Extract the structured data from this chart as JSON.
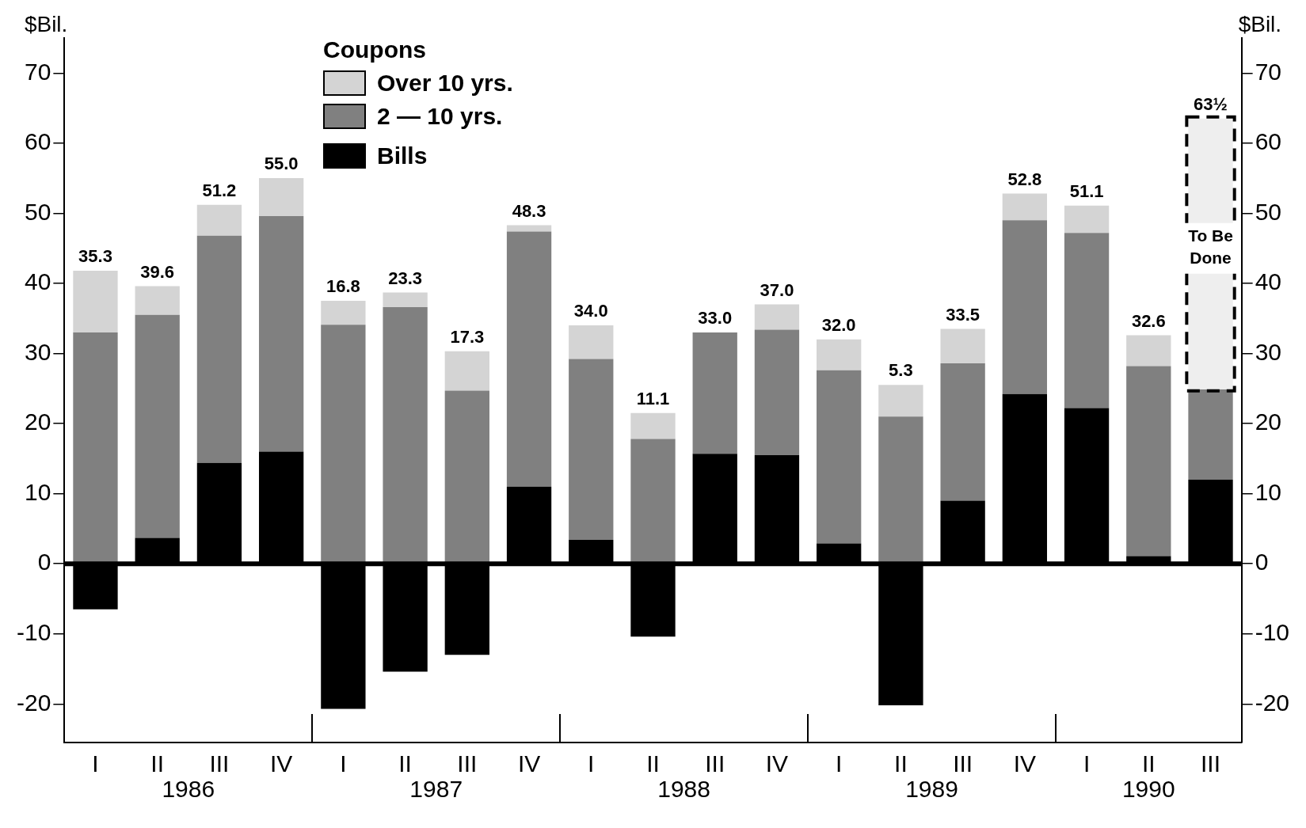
{
  "chart_data": {
    "type": "bar",
    "stacked": true,
    "categories": [
      "I",
      "II",
      "III",
      "IV",
      "I",
      "II",
      "III",
      "IV",
      "I",
      "II",
      "III",
      "IV",
      "I",
      "II",
      "III",
      "IV",
      "I",
      "II",
      "III"
    ],
    "series": [
      {
        "name": "Bills",
        "color": "#000000",
        "values": [
          -6.5,
          3.7,
          14.4,
          16.0,
          -20.7,
          -15.4,
          -13.0,
          11.0,
          3.4,
          -10.4,
          15.7,
          15.5,
          2.9,
          -20.2,
          9.0,
          24.2,
          22.2,
          1.1,
          12.0
        ]
      },
      {
        "name": "2 — 10 yrs.",
        "color": "#808080",
        "values": [
          33.0,
          31.8,
          32.4,
          33.6,
          34.1,
          36.6,
          24.7,
          36.4,
          25.8,
          17.8,
          17.3,
          17.9,
          24.7,
          21.0,
          19.6,
          24.8,
          25.0,
          27.1,
          12.9
        ]
      },
      {
        "name": "Over 10 yrs.",
        "color": "#d4d4d4",
        "values": [
          8.8,
          4.1,
          4.4,
          5.4,
          3.4,
          2.1,
          5.6,
          0.9,
          4.8,
          3.7,
          null,
          3.6,
          4.4,
          4.5,
          4.9,
          3.8,
          3.9,
          4.4,
          null
        ]
      },
      {
        "color": "#eeeeee",
        "line_style": "dashed",
        "values": [
          null,
          null,
          null,
          null,
          null,
          null,
          null,
          null,
          null,
          null,
          null,
          null,
          null,
          null,
          null,
          null,
          null,
          null,
          38.6
        ]
      }
    ],
    "totals": [
      "35.3",
      "39.6",
      "51.2",
      "55.0",
      "16.8",
      "23.3",
      "17.3",
      "48.3",
      "34.0",
      "11.1",
      "33.0",
      "37.0",
      "32.0",
      "5.3",
      "33.5",
      "52.8",
      "51.1",
      "32.6",
      "63½"
    ],
    "legend_title": "Coupons",
    "legend": "top left",
    "ylabel": "$Bil.",
    "y2label": "$Bil.",
    "ylim": [
      -25.5,
      75
    ],
    "yticks": [
      -20,
      -10,
      0,
      10,
      20,
      30,
      40,
      50,
      60,
      70
    ],
    "y2lim": [
      -25.5,
      75
    ],
    "y2ticks": [
      -20,
      -10,
      0,
      10,
      20,
      30,
      40,
      50,
      60,
      70
    ],
    "ref_lines": [
      {
        "axis": "y",
        "value": 0,
        "color": "#000000"
      }
    ],
    "annotations": [
      "To Be Done",
      "1986",
      "1987",
      "1988",
      "1989",
      "1990"
    ]
  }
}
